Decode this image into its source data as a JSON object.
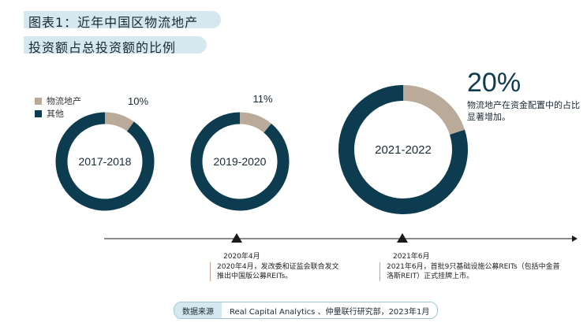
{
  "title": {
    "line1": "图表1：近年中国区物流地产",
    "line2": "投资额占总投资额的比例"
  },
  "legend": [
    {
      "label": "物流地产",
      "color": "#b9aa9a"
    },
    {
      "label": "其他",
      "color": "#0d3b4f"
    }
  ],
  "chart_data": {
    "type": "pie",
    "variant": "donut",
    "charts": [
      {
        "label": "2017-2018",
        "pct_label": "10%",
        "values": {
          "物流地产": 10,
          "其他": 90
        }
      },
      {
        "label": "2019-2020",
        "pct_label": "11%",
        "values": {
          "物流地产": 11,
          "其他": 89
        }
      },
      {
        "label": "2021-2022",
        "pct_label": "20%",
        "values": {
          "物流地产": 20,
          "其他": 80
        }
      }
    ],
    "series_colors": {
      "物流地产": "#b9aa9a",
      "其他": "#0d3b4f"
    }
  },
  "highlight": {
    "pct": "20%",
    "text": "物流地产在资金配置中的占比显著增加。"
  },
  "timeline": [
    {
      "date": "2020年4月",
      "note": "2020年4月，发改委和证监会联合发文推出中国版公募REITs。"
    },
    {
      "date": "2021年6月",
      "note": "2021年6月，首批9只基础设施公募REITs（包括中金普洛斯REIT）正式挂牌上市。"
    }
  ],
  "source": {
    "label": "数据来源",
    "text": "Real Capital Analytics 、仲量联行研究部，2023年1月"
  }
}
